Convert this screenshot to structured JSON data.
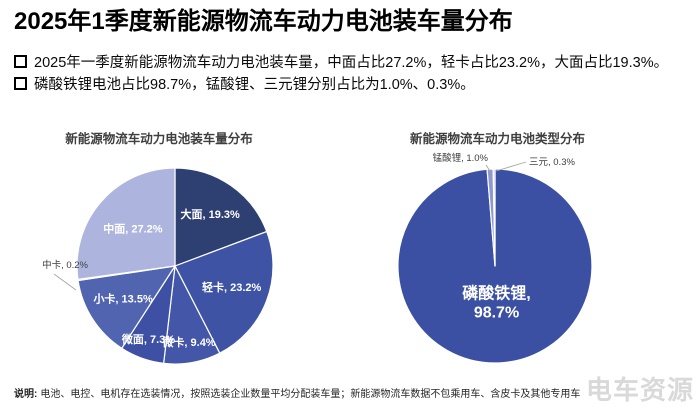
{
  "header": {
    "title": "2025年1季度新能源物流车动力电池装车量分布",
    "bullets": [
      "2025年一季度新能源物流车动力电池装车量，中面占比27.2%，轻卡占比23.2%，大面占比19.3%。",
      "磷酸铁锂电池占比98.7%，锰酸锂、三元锂分别占比为1.0%、0.3%。"
    ]
  },
  "chart_data": [
    {
      "type": "pie",
      "title": "新能源物流车动力电池装车量分布",
      "unit": "%",
      "start_angle": "12-oclock-clockwise",
      "slices": [
        {
          "label": "大面",
          "value": 19.3,
          "color": "#2E3F72"
        },
        {
          "label": "轻卡",
          "value": 23.2,
          "color": "#3F53A5"
        },
        {
          "label": "微卡",
          "value": 9.4,
          "color": "#4356A8"
        },
        {
          "label": "微面",
          "value": 7.3,
          "color": "#3D50A3"
        },
        {
          "label": "小卡",
          "value": 13.5,
          "color": "#5164B0"
        },
        {
          "label": "中卡",
          "value": 0.2,
          "color": "#7D8AC6"
        },
        {
          "label": "中面",
          "value": 27.2,
          "color": "#ADB5DF"
        }
      ]
    },
    {
      "type": "pie",
      "title": "新能源物流车动力电池类型分布",
      "unit": "%",
      "start_angle": "12-oclock-clockwise",
      "slices": [
        {
          "label": "磷酸铁锂",
          "value": 98.7,
          "color": "#3B50A3"
        },
        {
          "label": "锰酸锂",
          "value": 1.0,
          "color": "#8D99D0"
        },
        {
          "label": "三元",
          "value": 0.3,
          "color": "#C2C9E8"
        }
      ]
    }
  ],
  "footer": {
    "label": "说明:",
    "text": "电池、电控、电机存在选装情况，按照选装企业数量平均分配装车量；新能源物流车数据不包乘用车、含皮卡及其他专用车",
    "watermark": "电车资源"
  }
}
